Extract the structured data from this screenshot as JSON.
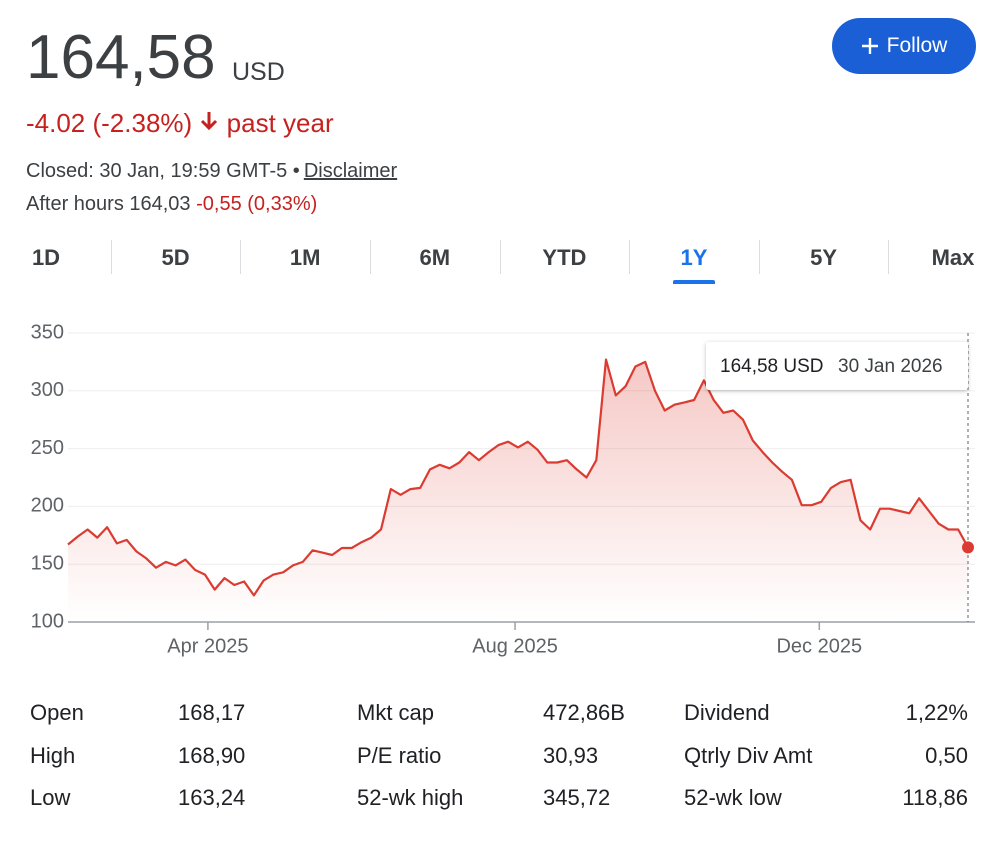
{
  "header": {
    "price": "164,58",
    "currency": "USD",
    "change": "-4.02 (-2.38%)",
    "period": "past year",
    "closed": "Closed: 30 Jan, 19:59 GMT-5 •",
    "disclaimer": "Disclaimer",
    "after_hours_label": "After hours 164,03",
    "after_hours_change": "-0,55 (0,33%)"
  },
  "follow": "Follow",
  "tabs": [
    "1D",
    "5D",
    "1M",
    "6M",
    "YTD",
    "1Y",
    "5Y",
    "Max"
  ],
  "selected_tab": 5,
  "chart_data": {
    "type": "line",
    "series": [
      {
        "name": "Price",
        "color": "#db3b30",
        "values": [
          167,
          174,
          180,
          173,
          182,
          168,
          171,
          161,
          155,
          147,
          152,
          149,
          154,
          145,
          141,
          128,
          138,
          132,
          135,
          123,
          136,
          141,
          143,
          149,
          152,
          162,
          160,
          158,
          164,
          164,
          169,
          173,
          180,
          215,
          210,
          215,
          216,
          232,
          236,
          233,
          238,
          247,
          240,
          247,
          253,
          256,
          251,
          256,
          249,
          238,
          238,
          240,
          232,
          225,
          240,
          327,
          296,
          304,
          321,
          325,
          300,
          283,
          288,
          290,
          292,
          309,
          292,
          281,
          283,
          275,
          257,
          247,
          238,
          230,
          223,
          201,
          201,
          204,
          216,
          221,
          223,
          188,
          180,
          198,
          198,
          196,
          194,
          207,
          196,
          185,
          180,
          180,
          164.58
        ]
      }
    ],
    "ylim": [
      100,
      350
    ],
    "yticks": [
      100,
      150,
      200,
      250,
      300,
      350
    ],
    "xlim": [
      0,
      92
    ],
    "xticks": [
      {
        "value": 14.3,
        "label": "Apr 2025"
      },
      {
        "value": 45.7,
        "label": "Aug 2025"
      },
      {
        "value": 76.8,
        "label": "Dec 2025"
      }
    ],
    "grid": true,
    "tooltip": {
      "value": "164,58 USD",
      "date": "30 Jan 2026"
    }
  },
  "stats": [
    [
      [
        "Open",
        "168,17"
      ],
      [
        "Mkt cap",
        "472,86B"
      ],
      [
        "Dividend",
        "1,22%"
      ]
    ],
    [
      [
        "High",
        "168,90"
      ],
      [
        "P/E ratio",
        "30,93"
      ],
      [
        "Qtrly Div Amt",
        "0,50"
      ]
    ],
    [
      [
        "Low",
        "163,24"
      ],
      [
        "52-wk high",
        "345,72"
      ],
      [
        "52-wk low",
        "118,86"
      ]
    ]
  ]
}
